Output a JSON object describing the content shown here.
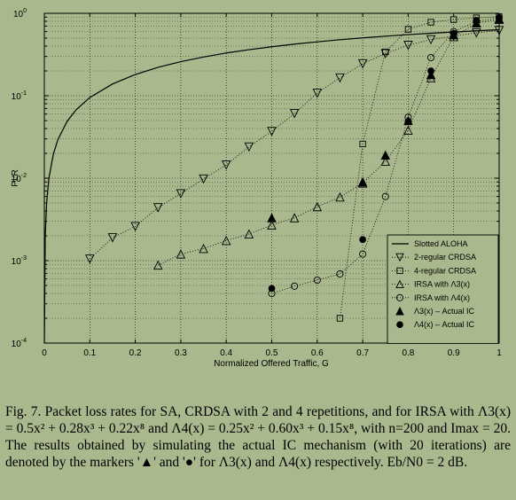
{
  "chart_data": {
    "type": "scatter",
    "xlabel": "Normalized Offered Traffic, G",
    "ylabel": "PLR",
    "xlim": [
      0,
      1
    ],
    "ylim": [
      0.0001,
      1
    ],
    "yscale": "log",
    "xticks": [
      "0",
      "0.1",
      "0.2",
      "0.3",
      "0.4",
      "0.5",
      "0.6",
      "0.7",
      "0.8",
      "0.9",
      "1"
    ],
    "yticks": [
      {
        "base": "10",
        "exp": "0"
      },
      {
        "base": "10",
        "exp": "-1"
      },
      {
        "base": "10",
        "exp": "-2"
      },
      {
        "base": "10",
        "exp": "-3"
      },
      {
        "base": "10",
        "exp": "-4"
      }
    ],
    "grid": true,
    "legend_position": "bottom-right",
    "series": [
      {
        "name": "Slotted ALOHA",
        "style": "line",
        "x": [
          0.0001,
          0.002,
          0.005,
          0.01,
          0.02,
          0.03,
          0.05,
          0.07,
          0.1,
          0.15,
          0.2,
          0.25,
          0.3,
          0.35,
          0.4,
          0.45,
          0.5,
          0.55,
          0.6,
          0.65,
          0.7,
          0.75,
          0.8,
          0.85,
          0.9,
          0.95,
          1.0
        ],
        "y": [
          0.0001,
          0.002,
          0.005,
          0.00995,
          0.0198,
          0.0296,
          0.0488,
          0.0676,
          0.0952,
          0.139,
          0.181,
          0.221,
          0.259,
          0.295,
          0.33,
          0.362,
          0.393,
          0.423,
          0.451,
          0.478,
          0.503,
          0.528,
          0.551,
          0.573,
          0.593,
          0.613,
          0.632
        ]
      },
      {
        "name": "2-regular CRDSA",
        "style": "dotted",
        "marker": "triangle-down",
        "x": [
          0.1,
          0.15,
          0.2,
          0.25,
          0.3,
          0.35,
          0.4,
          0.45,
          0.5,
          0.55,
          0.6,
          0.65,
          0.7,
          0.75,
          0.8,
          0.85,
          0.9,
          0.95,
          1.0
        ],
        "y": [
          0.00105,
          0.0019,
          0.0026,
          0.0044,
          0.0065,
          0.0098,
          0.0145,
          0.024,
          0.037,
          0.061,
          0.108,
          0.165,
          0.245,
          0.325,
          0.41,
          0.48,
          0.53,
          0.58,
          0.62
        ]
      },
      {
        "name": "4-regular CRDSA",
        "style": "dotted",
        "marker": "square",
        "x": [
          0.65,
          0.7,
          0.75,
          0.8,
          0.85,
          0.9,
          0.95,
          1.0
        ],
        "y": [
          0.0002,
          0.026,
          0.34,
          0.64,
          0.78,
          0.84,
          0.88,
          0.91
        ]
      },
      {
        "name": "IRSA with Λ3(x)",
        "style": "dotted",
        "marker": "triangle-up",
        "x": [
          0.25,
          0.3,
          0.35,
          0.4,
          0.45,
          0.5,
          0.55,
          0.6,
          0.65,
          0.7,
          0.75,
          0.8,
          0.85,
          0.9,
          0.95,
          1.0
        ],
        "y": [
          0.00088,
          0.0012,
          0.0014,
          0.00175,
          0.0021,
          0.0027,
          0.0033,
          0.0045,
          0.0059,
          0.0087,
          0.016,
          0.038,
          0.165,
          0.52,
          0.76,
          0.84
        ]
      },
      {
        "name": "IRSA with Λ4(x)",
        "style": "dotted",
        "marker": "circle",
        "x": [
          0.5,
          0.55,
          0.6,
          0.65,
          0.7,
          0.75,
          0.8,
          0.85,
          0.9,
          0.95,
          1.0
        ],
        "y": [
          0.0004,
          0.00049,
          0.00058,
          0.00069,
          0.0012,
          0.006,
          0.055,
          0.29,
          0.6,
          0.8,
          0.88
        ]
      },
      {
        "name": "Λ3(x) – Actual IC",
        "style": "none",
        "marker": "filled-triangle-up",
        "x": [
          0.5,
          0.7,
          0.75,
          0.8,
          0.85,
          0.9,
          0.95,
          1.0
        ],
        "y": [
          0.0033,
          0.009,
          0.019,
          0.05,
          0.18,
          0.55,
          0.76,
          0.86
        ]
      },
      {
        "name": "Λ4(x) – Actual IC",
        "style": "none",
        "marker": "filled-circle",
        "x": [
          0.5,
          0.7,
          0.8,
          0.85,
          0.9,
          0.95,
          1.0
        ],
        "y": [
          0.00046,
          0.0018,
          0.049,
          0.2,
          0.57,
          0.82,
          0.89
        ]
      }
    ]
  },
  "caption": {
    "line1": "Fig. 7.   Packet loss rates for SA, CRDSA with 2 and 4 repetitions, and for",
    "line2": "IRSA with Λ3(x) = 0.5x² + 0.28x³ + 0.22x⁸ and Λ4(x) = 0.25x² +",
    "line3": "0.60x³ + 0.15x⁸, with n=200 and Imax = 20. The results obtained by",
    "line4": "simulating the actual IC mechanism (with 20 iterations) are denoted by the",
    "line5": "markers '▲' and '●' for Λ3(x) and Λ4(x) respectively. Eb/N0 = 2 dB."
  }
}
